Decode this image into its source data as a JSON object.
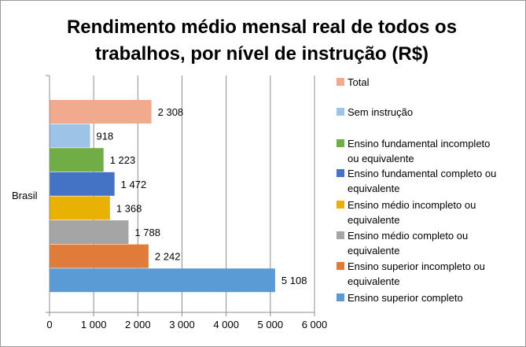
{
  "chart_data": {
    "type": "bar",
    "orientation": "horizontal",
    "title_lines": [
      "Rendimento médio mensal real de todos os",
      "trabalhos, por nível de instrução (R$)"
    ],
    "title": "Rendimento médio mensal real de todos os trabalhos, por nível de instrução (R$)",
    "category": "Brasil",
    "xlim": [
      0,
      6000
    ],
    "xticks": [
      0,
      1000,
      2000,
      3000,
      4000,
      5000,
      6000
    ],
    "xtick_labels": [
      "0",
      "1 000",
      "2 000",
      "3 000",
      "4 000",
      "5 000",
      "6 000"
    ],
    "grid": true,
    "legend_position": "right",
    "series": [
      {
        "name": "Total",
        "legend_lines": [
          "Total"
        ],
        "value": 2308,
        "label": "2 308",
        "color": "#F2AA8E"
      },
      {
        "name": "Sem instrução",
        "legend_lines": [
          "Sem instrução"
        ],
        "value": 918,
        "label": "918",
        "color": "#9DC3E6"
      },
      {
        "name": "Ensino fundamental incompleto ou equivalente",
        "legend_lines": [
          "Ensino fundamental incompleto",
          "ou equivalente"
        ],
        "value": 1223,
        "label": "1 223",
        "color": "#70AD47"
      },
      {
        "name": "Ensino fundamental completo ou equivalente",
        "legend_lines": [
          "Ensino fundamental completo ou",
          "equivalente"
        ],
        "value": 1472,
        "label": "1 472",
        "color": "#4472C4"
      },
      {
        "name": "Ensino médio incompleto ou equivalente",
        "legend_lines": [
          "Ensino médio incompleto ou",
          "equivalente"
        ],
        "value": 1368,
        "label": "1 368",
        "color": "#E9B103"
      },
      {
        "name": "Ensino médio completo ou equivalente",
        "legend_lines": [
          "Ensino médio completo ou",
          "equivalente"
        ],
        "value": 1788,
        "label": "1 788",
        "color": "#A5A5A5"
      },
      {
        "name": "Ensino superior incompleto ou equivalente",
        "legend_lines": [
          "Ensino superior incompleto ou",
          "equivalente"
        ],
        "value": 2242,
        "label": "2 242",
        "color": "#E07B39"
      },
      {
        "name": "Ensino superior completo",
        "legend_lines": [
          "Ensino superior completo"
        ],
        "value": 5108,
        "label": "5 108",
        "color": "#5B9BD5"
      }
    ]
  }
}
